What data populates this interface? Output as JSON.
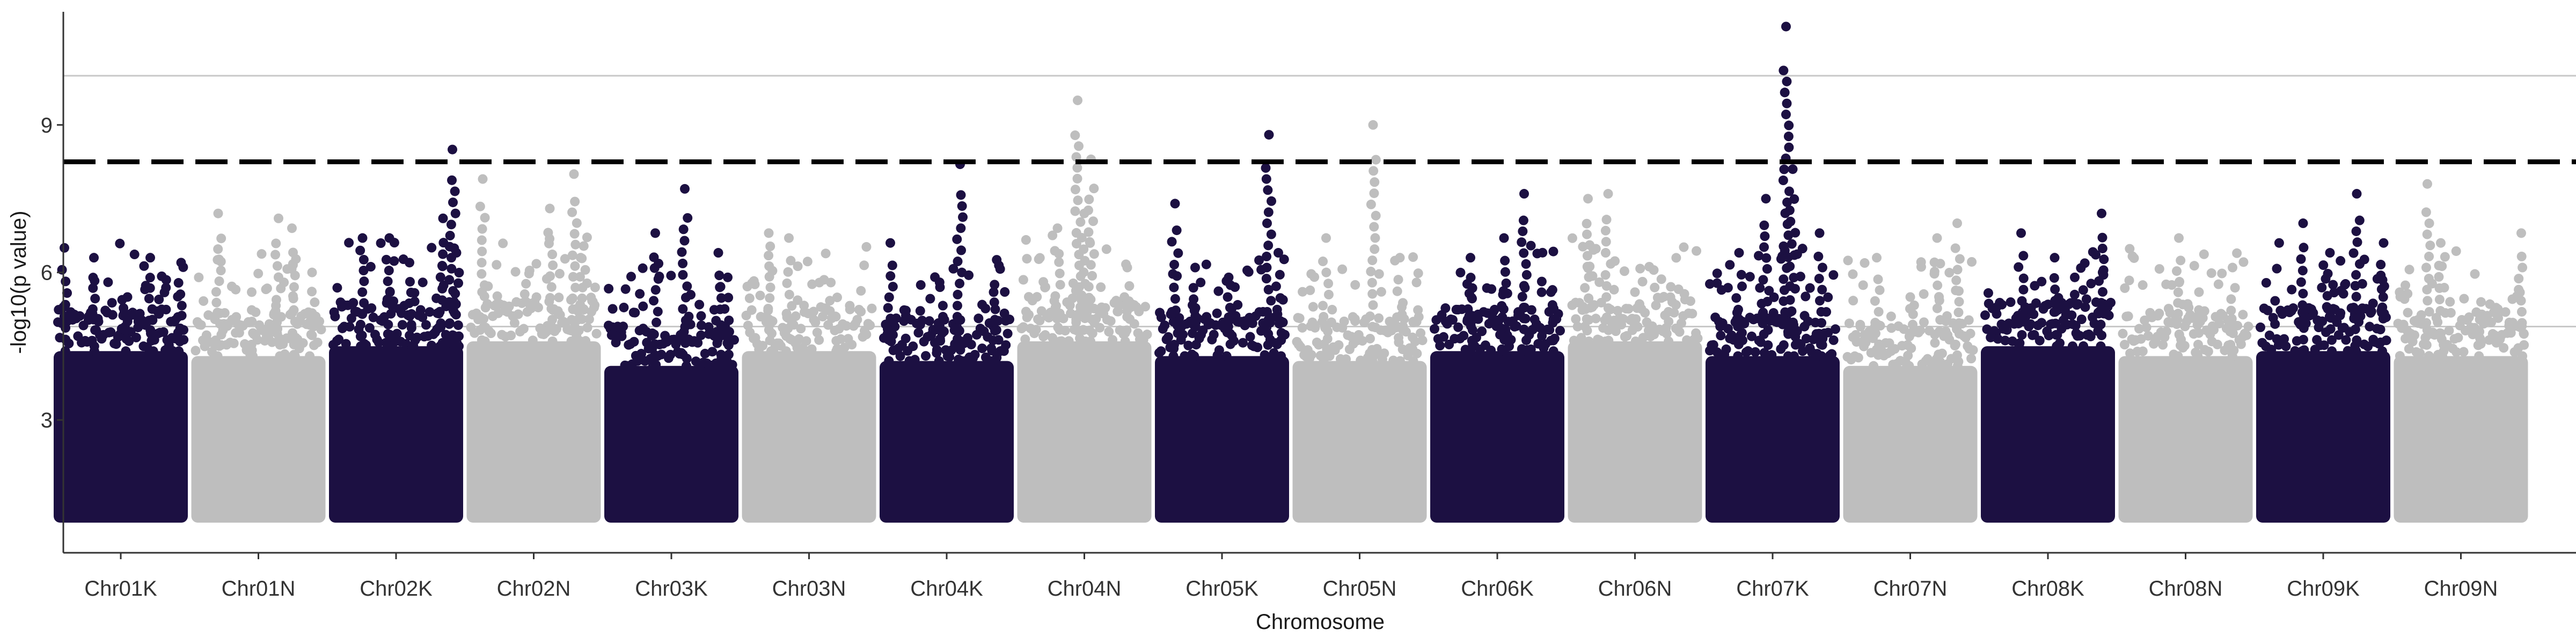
{
  "chart_data": {
    "type": "scatter",
    "subtype": "manhattan",
    "xlabel": "Chromosome",
    "ylabel": "-log10(p value)",
    "ylim": [
      0.3,
      11.3
    ],
    "yticks": [
      "3",
      "6",
      "9"
    ],
    "ytick_values": [
      3,
      6,
      9
    ],
    "grid": "reference lines only",
    "colors": {
      "K": "#1c1042",
      "N": "#bebebe",
      "threshold": "#000000",
      "refline": "#c8c8c8"
    },
    "reference_lines": [
      {
        "y": 4.9,
        "style": "solid",
        "color": "#c8c8c8"
      },
      {
        "y": 8.25,
        "style": "dashed",
        "color": "#000000"
      },
      {
        "y": 10.0,
        "style": "solid",
        "color": "#c8c8c8"
      }
    ],
    "categories": [
      "Chr01K",
      "Chr01N",
      "Chr02K",
      "Chr02N",
      "Chr03K",
      "Chr03N",
      "Chr04K",
      "Chr04N",
      "Chr05K",
      "Chr05N",
      "Chr06K",
      "Chr06N",
      "Chr07K",
      "Chr07N",
      "Chr08K",
      "Chr08N",
      "Chr09K",
      "Chr09N"
    ],
    "series": [
      {
        "chromosome": "Chr01K",
        "group": "K",
        "base_top": 4.4,
        "peaks": [
          [
            0.08,
            6.5
          ],
          [
            0.3,
            6.3
          ],
          [
            0.55,
            5.5
          ],
          [
            0.72,
            6.3
          ],
          [
            0.95,
            6.2
          ],
          [
            0.9,
            5.0
          ]
        ]
      },
      {
        "chromosome": "Chr01N",
        "group": "N",
        "base_top": 4.3,
        "peaks": [
          [
            0.2,
            7.2
          ],
          [
            0.45,
            5.6
          ],
          [
            0.65,
            7.1
          ],
          [
            0.75,
            6.9
          ],
          [
            0.9,
            6.0
          ]
        ]
      },
      {
        "chromosome": "Chr02K",
        "group": "K",
        "base_top": 4.5,
        "peaks": [
          [
            0.25,
            6.7
          ],
          [
            0.45,
            6.7
          ],
          [
            0.6,
            6.2
          ],
          [
            0.85,
            7.1
          ],
          [
            0.92,
            8.5
          ],
          [
            0.95,
            6.4
          ]
        ]
      },
      {
        "chromosome": "Chr02N",
        "group": "N",
        "base_top": 4.6,
        "peaks": [
          [
            0.12,
            7.9
          ],
          [
            0.62,
            7.3
          ],
          [
            0.8,
            8.0
          ],
          [
            0.85,
            6.3
          ]
        ]
      },
      {
        "chromosome": "Chr03K",
        "group": "K",
        "base_top": 4.1,
        "peaks": [
          [
            0.38,
            6.8
          ],
          [
            0.6,
            7.7
          ],
          [
            0.85,
            6.4
          ],
          [
            0.92,
            5.9
          ]
        ]
      },
      {
        "chromosome": "Chr03N",
        "group": "N",
        "base_top": 4.4,
        "peaks": [
          [
            0.2,
            6.8
          ],
          [
            0.35,
            6.7
          ],
          [
            0.7,
            5.1
          ]
        ]
      },
      {
        "chromosome": "Chr04K",
        "group": "K",
        "base_top": 4.2,
        "peaks": [
          [
            0.08,
            6.6
          ],
          [
            0.45,
            5.7
          ],
          [
            0.6,
            8.2
          ],
          [
            0.85,
            5.6
          ]
        ]
      },
      {
        "chromosome": "Chr04N",
        "group": "N",
        "base_top": 4.6,
        "peaks": [
          [
            0.3,
            6.9
          ],
          [
            0.45,
            9.5
          ],
          [
            0.5,
            7.2
          ],
          [
            0.55,
            8.3
          ],
          [
            0.82,
            6.1
          ]
        ]
      },
      {
        "chromosome": "Chr05K",
        "group": "K",
        "base_top": 4.3,
        "peaks": [
          [
            0.15,
            7.4
          ],
          [
            0.3,
            6.1
          ],
          [
            0.55,
            5.9
          ],
          [
            0.85,
            8.8
          ],
          [
            0.92,
            6.4
          ]
        ]
      },
      {
        "chromosome": "Chr05N",
        "group": "N",
        "base_top": 4.2,
        "peaks": [
          [
            0.25,
            6.7
          ],
          [
            0.6,
            9.0
          ],
          [
            0.8,
            6.3
          ],
          [
            0.9,
            5.0
          ]
        ]
      },
      {
        "chromosome": "Chr06K",
        "group": "K",
        "base_top": 4.4,
        "peaks": [
          [
            0.3,
            6.3
          ],
          [
            0.55,
            6.7
          ],
          [
            0.7,
            7.6
          ],
          [
            0.9,
            5.6
          ]
        ]
      },
      {
        "chromosome": "Chr06N",
        "group": "N",
        "base_top": 4.6,
        "peaks": [
          [
            0.15,
            7.5
          ],
          [
            0.3,
            7.6
          ],
          [
            0.5,
            5.6
          ],
          [
            0.75,
            5.2
          ]
        ]
      },
      {
        "chromosome": "Chr07K",
        "group": "K",
        "base_top": 4.3,
        "peaks": [
          [
            0.25,
            6.4
          ],
          [
            0.45,
            7.5
          ],
          [
            0.6,
            11.0
          ],
          [
            0.65,
            8.1
          ],
          [
            0.85,
            6.8
          ]
        ]
      },
      {
        "chromosome": "Chr07N",
        "group": "N",
        "base_top": 4.1,
        "peaks": [
          [
            0.25,
            6.3
          ],
          [
            0.5,
            5.5
          ],
          [
            0.7,
            6.7
          ],
          [
            0.85,
            7.0
          ]
        ]
      },
      {
        "chromosome": "Chr08K",
        "group": "K",
        "base_top": 4.5,
        "peaks": [
          [
            0.3,
            6.8
          ],
          [
            0.55,
            6.3
          ],
          [
            0.7,
            5.9
          ],
          [
            0.9,
            7.2
          ]
        ]
      },
      {
        "chromosome": "Chr08N",
        "group": "N",
        "base_top": 4.3,
        "peaks": [
          [
            0.45,
            6.7
          ],
          [
            0.6,
            5.6
          ],
          [
            0.85,
            6.1
          ]
        ]
      },
      {
        "chromosome": "Chr09K",
        "group": "K",
        "base_top": 4.4,
        "peaks": [
          [
            0.35,
            7.0
          ],
          [
            0.55,
            6.4
          ],
          [
            0.75,
            7.6
          ],
          [
            0.95,
            6.6
          ]
        ]
      },
      {
        "chromosome": "Chr09N",
        "group": "N",
        "base_top": 4.3,
        "peaks": [
          [
            0.25,
            7.8
          ],
          [
            0.35,
            6.6
          ],
          [
            0.65,
            5.4
          ],
          [
            0.95,
            6.8
          ]
        ]
      }
    ]
  }
}
